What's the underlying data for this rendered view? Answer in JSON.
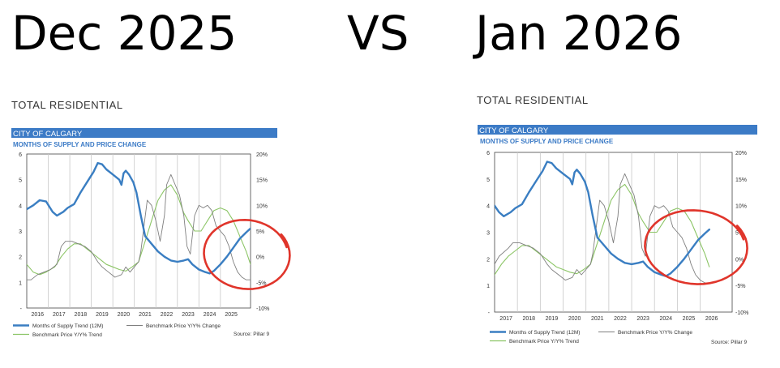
{
  "header": {
    "left": "Dec 2025",
    "vs": "VS",
    "right": "Jan 2026"
  },
  "colors": {
    "band": "#3c7bc6",
    "supply": "#3a7ec2",
    "volatile": "#7f7f7f",
    "trend": "#8cc566",
    "circle": "#e0352b",
    "grid": "#c8c8c8"
  },
  "chart_data": [
    {
      "type": "line",
      "section_title": "TOTAL RESIDENTIAL",
      "band_label": "CITY OF CALGARY",
      "title": "MONTHS OF SUPPLY AND PRICE CHANGE",
      "source": "Source: Pillar 9",
      "xlim": [
        2015.5,
        2025.9
      ],
      "x_ticks": [
        "2016",
        "2017",
        "2018",
        "2019",
        "2020",
        "2021",
        "2022",
        "2023",
        "2024",
        "2025"
      ],
      "y_left": {
        "ticks": [
          "6",
          "5",
          "4",
          "3",
          "2",
          "1",
          "-"
        ],
        "ylim": [
          0,
          6
        ]
      },
      "y_right": {
        "ticks": [
          "20%",
          "15%",
          "10%",
          "5%",
          "0%",
          "-5%",
          "-10%"
        ],
        "ylim": [
          -10,
          20
        ]
      },
      "grid": "vertical",
      "legend_position": "bottom",
      "series": [
        {
          "name": "Months of Supply Trend (12M)",
          "axis": "left",
          "color": "#3a7ec2",
          "x": [
            2015.5,
            2015.8,
            2016.1,
            2016.4,
            2016.7,
            2016.9,
            2017.2,
            2017.4,
            2017.7,
            2018.0,
            2018.3,
            2018.6,
            2018.8,
            2019.0,
            2019.2,
            2019.5,
            2019.8,
            2019.9,
            2020.0,
            2020.1,
            2020.25,
            2020.45,
            2020.6,
            2020.8,
            2021.0,
            2021.3,
            2021.6,
            2021.9,
            2022.2,
            2022.5,
            2022.8,
            2023.0,
            2023.2,
            2023.5,
            2023.8,
            2024.0,
            2024.2,
            2024.5,
            2024.8,
            2025.1,
            2025.4,
            2025.7,
            2025.9
          ],
          "y": [
            3.85,
            4.0,
            4.2,
            4.15,
            3.75,
            3.6,
            3.75,
            3.9,
            4.05,
            4.5,
            4.9,
            5.3,
            5.65,
            5.6,
            5.4,
            5.2,
            5.0,
            4.8,
            5.25,
            5.35,
            5.2,
            4.9,
            4.5,
            3.6,
            2.8,
            2.5,
            2.2,
            2.0,
            1.85,
            1.8,
            1.85,
            1.9,
            1.7,
            1.5,
            1.4,
            1.35,
            1.45,
            1.7,
            2.0,
            2.35,
            2.7,
            2.95,
            3.1
          ]
        },
        {
          "name": "Benchmark Price Y/Y% Change",
          "axis": "right",
          "color": "#7f7f7f",
          "x": [
            2015.5,
            2015.7,
            2016.0,
            2016.3,
            2016.6,
            2016.9,
            2017.1,
            2017.3,
            2017.6,
            2017.9,
            2018.2,
            2018.5,
            2018.8,
            2019.0,
            2019.3,
            2019.6,
            2019.9,
            2020.1,
            2020.3,
            2020.5,
            2020.7,
            2020.8,
            2020.95,
            2021.1,
            2021.3,
            2021.5,
            2021.7,
            2021.9,
            2022.0,
            2022.2,
            2022.4,
            2022.6,
            2022.8,
            2022.95,
            2023.1,
            2023.3,
            2023.5,
            2023.7,
            2023.9,
            2024.1,
            2024.3,
            2024.5,
            2024.7,
            2024.9,
            2025.1,
            2025.3,
            2025.5,
            2025.7,
            2025.9
          ],
          "y": [
            -4.5,
            -4.5,
            -3.5,
            -3.0,
            -2.5,
            -1.5,
            2.0,
            3.0,
            3.0,
            2.5,
            2.0,
            1.0,
            -1.0,
            -2.0,
            -3.0,
            -4.0,
            -3.5,
            -2.0,
            -3.0,
            -2.0,
            -1.0,
            1.0,
            6.0,
            11.0,
            10.0,
            7.0,
            3.0,
            8.0,
            14.0,
            16.0,
            14.0,
            12.0,
            8.0,
            2.0,
            0.5,
            8.0,
            10.0,
            9.5,
            10.0,
            9.0,
            6.0,
            5.0,
            4.0,
            2.0,
            -1.0,
            -3.0,
            -4.0,
            -4.5,
            -4.5
          ]
        },
        {
          "name": "Benchmark Price Y/Y% Trend",
          "axis": "right",
          "color": "#8cc566",
          "x": [
            2015.5,
            2015.8,
            2016.1,
            2016.4,
            2016.8,
            2017.1,
            2017.4,
            2017.7,
            2018.0,
            2018.3,
            2018.6,
            2018.9,
            2019.2,
            2019.5,
            2019.8,
            2020.1,
            2020.4,
            2020.7,
            2021.0,
            2021.3,
            2021.6,
            2021.9,
            2022.2,
            2022.5,
            2022.8,
            2023.0,
            2023.3,
            2023.6,
            2023.9,
            2024.2,
            2024.5,
            2024.8,
            2025.1,
            2025.4,
            2025.7,
            2025.9
          ],
          "y": [
            -1.5,
            -3.0,
            -3.5,
            -3.0,
            -2.0,
            0.0,
            1.5,
            2.5,
            2.5,
            1.5,
            0.5,
            -0.5,
            -1.5,
            -2.0,
            -2.5,
            -2.8,
            -2.0,
            -1.0,
            3.0,
            7.0,
            11.0,
            13.0,
            14.0,
            12.0,
            8.5,
            7.0,
            5.0,
            5.0,
            7.0,
            9.0,
            9.5,
            9.0,
            7.0,
            4.0,
            1.0,
            -1.5
          ]
        }
      ]
    },
    {
      "type": "line",
      "section_title": "TOTAL RESIDENTIAL",
      "band_label": "CITY OF CALGARY",
      "title": "MONTHS OF SUPPLY AND PRICE CHANGE",
      "source": "Source: Pillar 9",
      "xlim": [
        2016.5,
        2026.9
      ],
      "x_ticks": [
        "2017",
        "2018",
        "2019",
        "2020",
        "2021",
        "2022",
        "2023",
        "2024",
        "2025",
        "2026"
      ],
      "y_left": {
        "ticks": [
          "6",
          "5",
          "4",
          "3",
          "2",
          "1",
          "-"
        ],
        "ylim": [
          0,
          6
        ]
      },
      "y_right": {
        "ticks": [
          "20%",
          "15%",
          "10%",
          "5%",
          "0%",
          "-5%",
          "-10%"
        ],
        "ylim": [
          -10,
          20
        ]
      },
      "grid": "vertical",
      "legend_position": "bottom",
      "series": [
        {
          "name": "Months of Supply Trend (12M)",
          "axis": "left",
          "color": "#3a7ec2",
          "x": [
            2016.5,
            2016.7,
            2016.9,
            2017.2,
            2017.4,
            2017.7,
            2018.0,
            2018.3,
            2018.6,
            2018.8,
            2019.0,
            2019.2,
            2019.5,
            2019.8,
            2019.9,
            2020.0,
            2020.1,
            2020.25,
            2020.45,
            2020.6,
            2020.8,
            2021.0,
            2021.3,
            2021.6,
            2021.9,
            2022.2,
            2022.5,
            2022.8,
            2023.0,
            2023.2,
            2023.5,
            2023.8,
            2024.0,
            2024.2,
            2024.5,
            2024.8,
            2025.1,
            2025.4,
            2025.7,
            2025.9
          ],
          "y": [
            4.0,
            3.75,
            3.6,
            3.75,
            3.9,
            4.05,
            4.5,
            4.9,
            5.3,
            5.65,
            5.6,
            5.4,
            5.2,
            5.0,
            4.8,
            5.25,
            5.35,
            5.2,
            4.9,
            4.5,
            3.6,
            2.8,
            2.5,
            2.2,
            2.0,
            1.85,
            1.8,
            1.85,
            1.9,
            1.7,
            1.5,
            1.4,
            1.35,
            1.45,
            1.7,
            2.0,
            2.35,
            2.7,
            2.95,
            3.1
          ]
        },
        {
          "name": "Benchmark Price Y/Y% Change",
          "axis": "right",
          "color": "#7f7f7f",
          "x": [
            2016.5,
            2016.7,
            2017.1,
            2017.3,
            2017.6,
            2017.9,
            2018.2,
            2018.5,
            2018.8,
            2019.0,
            2019.3,
            2019.6,
            2019.9,
            2020.1,
            2020.3,
            2020.5,
            2020.7,
            2020.8,
            2020.95,
            2021.1,
            2021.3,
            2021.5,
            2021.7,
            2021.9,
            2022.0,
            2022.2,
            2022.4,
            2022.6,
            2022.8,
            2022.95,
            2023.1,
            2023.3,
            2023.5,
            2023.7,
            2023.9,
            2024.1,
            2024.3,
            2024.5,
            2024.7,
            2024.9,
            2025.1,
            2025.3,
            2025.5,
            2025.7,
            2025.9
          ],
          "y": [
            -1.0,
            0.5,
            2.0,
            3.0,
            3.0,
            2.5,
            2.0,
            1.0,
            -1.0,
            -2.0,
            -3.0,
            -4.0,
            -3.5,
            -2.0,
            -3.0,
            -2.0,
            -1.0,
            1.0,
            6.0,
            11.0,
            10.0,
            7.0,
            3.0,
            8.0,
            14.0,
            16.0,
            14.0,
            12.0,
            8.0,
            2.0,
            0.5,
            8.0,
            10.0,
            9.5,
            10.0,
            9.0,
            6.0,
            5.0,
            4.0,
            2.0,
            -1.0,
            -3.0,
            -4.0,
            -4.5,
            -4.5
          ]
        },
        {
          "name": "Benchmark Price Y/Y% Trend",
          "axis": "right",
          "color": "#8cc566",
          "x": [
            2016.5,
            2016.8,
            2017.1,
            2017.4,
            2017.7,
            2018.0,
            2018.3,
            2018.6,
            2018.9,
            2019.2,
            2019.5,
            2019.8,
            2020.1,
            2020.4,
            2020.7,
            2021.0,
            2021.3,
            2021.6,
            2021.9,
            2022.2,
            2022.5,
            2022.8,
            2023.0,
            2023.3,
            2023.6,
            2023.9,
            2024.2,
            2024.5,
            2024.8,
            2025.1,
            2025.4,
            2025.7,
            2025.9
          ],
          "y": [
            -3.0,
            -1.0,
            0.5,
            1.5,
            2.5,
            2.5,
            1.5,
            0.5,
            -0.5,
            -1.5,
            -2.0,
            -2.5,
            -2.8,
            -2.0,
            -1.0,
            3.0,
            7.0,
            11.0,
            13.0,
            14.0,
            12.0,
            8.5,
            7.0,
            5.0,
            5.0,
            7.0,
            9.0,
            9.5,
            9.0,
            7.0,
            4.0,
            1.0,
            -1.5
          ]
        }
      ]
    }
  ]
}
